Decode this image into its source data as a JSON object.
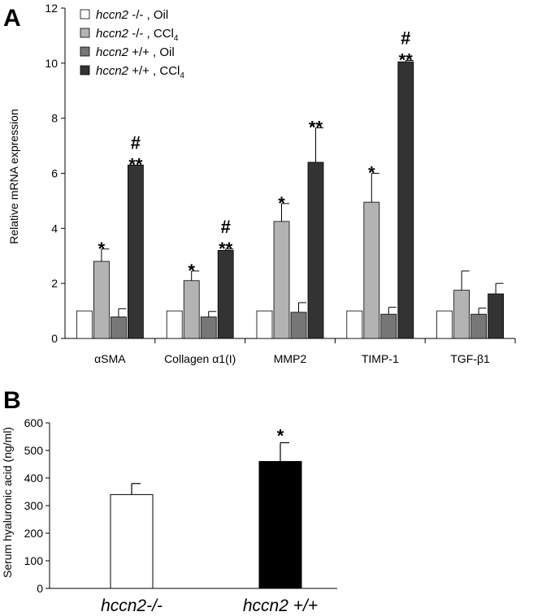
{
  "chart_data": [
    {
      "type": "bar",
      "panel_label": "A",
      "ylabel": "Relative mRNA expression",
      "ylim": [
        0,
        12
      ],
      "yticks": [
        0,
        2,
        4,
        6,
        8,
        10,
        12
      ],
      "categories": [
        "αSMA",
        "Collagen α1(I)",
        "MMP2",
        "TIMP-1",
        "TGF-β1"
      ],
      "legend_position": "top-left",
      "series": [
        {
          "name_gene": "hccn2",
          "name_rest": " -/- , Oil",
          "name_sub": "",
          "color": "#ffffff",
          "values": [
            1,
            1,
            1,
            1,
            1
          ],
          "errors": [
            0,
            0,
            0,
            0,
            0
          ],
          "annotations": [
            "",
            "",
            "",
            "",
            ""
          ]
        },
        {
          "name_gene": "hccn2",
          "name_rest": " -/- , CCl",
          "name_sub": "4",
          "color": "#b3b3b3",
          "values": [
            2.8,
            2.1,
            4.25,
            4.95,
            1.75
          ],
          "errors": [
            0.45,
            0.35,
            0.65,
            1.05,
            0.7
          ],
          "annotations": [
            "*",
            "*",
            "*",
            "*",
            ""
          ]
        },
        {
          "name_gene": "hccn2",
          "name_rest": " +/+ , Oil",
          "name_sub": "",
          "color": "#777777",
          "values": [
            0.78,
            0.78,
            0.95,
            0.88,
            0.88
          ],
          "errors": [
            0.3,
            0.2,
            0.35,
            0.25,
            0.22
          ],
          "annotations": [
            "",
            "",
            "",
            "",
            ""
          ]
        },
        {
          "name_gene": "hccn2",
          "name_rest": " +/+ , CCl",
          "name_sub": "4",
          "color": "#333333",
          "values": [
            6.3,
            3.2,
            6.4,
            10.05,
            1.62
          ],
          "errors": [
            0,
            0.05,
            1.25,
            0.05,
            0.38
          ],
          "annotations": [
            "# **",
            "# **",
            "**",
            "# **",
            ""
          ]
        }
      ]
    },
    {
      "type": "bar",
      "panel_label": "B",
      "ylabel": "Serum hyaluronic acid (ng/ml)",
      "ylim": [
        0,
        600
      ],
      "yticks": [
        0,
        100,
        200,
        300,
        400,
        500,
        600
      ],
      "categories": [
        "hccn2-/-",
        "hccn2 +/+"
      ],
      "values": [
        340,
        460
      ],
      "errors": [
        40,
        68
      ],
      "colors": [
        "#ffffff",
        "#000000"
      ],
      "annotations": [
        "",
        "*"
      ]
    }
  ]
}
